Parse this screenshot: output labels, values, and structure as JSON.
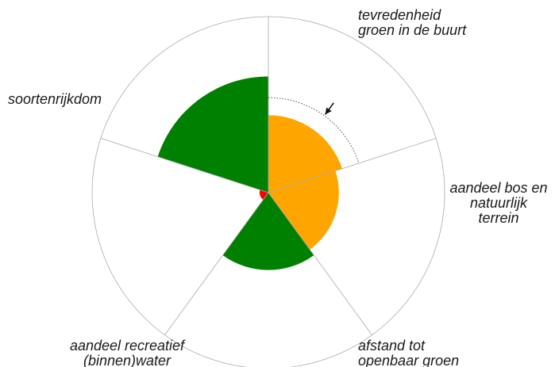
{
  "chart_data": {
    "type": "polar-area",
    "scale_max": 1.0,
    "categories": [
      {
        "lines": [
          "tevredenheid",
          "groen in de buurt"
        ],
        "value": 0.44,
        "color": "#ffa500",
        "reference": 0.54
      },
      {
        "lines": [
          "aandeel bos en",
          "natuurlijk",
          "terrein"
        ],
        "value": 0.4,
        "color": "#ffa500"
      },
      {
        "lines": [
          "afstand tot",
          "openbaar groen"
        ],
        "value": 0.44,
        "color": "#008000"
      },
      {
        "lines": [
          "aandeel recreatief",
          "(binnen)water"
        ],
        "value": 0.05,
        "color": "#ff0000"
      },
      {
        "lines": [
          "soortenrijkdom"
        ],
        "value": 0.66,
        "color": "#008000"
      }
    ],
    "outline_color": "#aaaaaa",
    "reference_marker": "arrow",
    "grid": false
  }
}
